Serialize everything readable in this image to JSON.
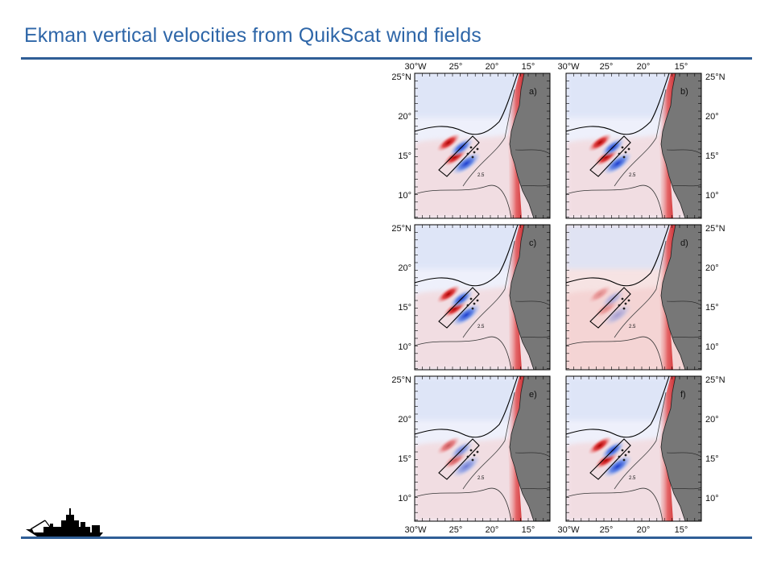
{
  "slide": {
    "title": "Ekman vertical velocities from QuikScat wind fields",
    "colors": {
      "title": "#2e66a8",
      "rule": "#2f5e96",
      "land": "#777777",
      "upwelling": "#d7191c",
      "downwelling": "#2b5fd9"
    }
  },
  "figure": {
    "top_lon_labels": [
      "30°W",
      "25°",
      "20°",
      "15°"
    ],
    "bottom_lon_labels": [
      "30°W",
      "25°",
      "20°",
      "15°"
    ],
    "lat_labels": [
      "25°N",
      "20°",
      "15°",
      "10°"
    ],
    "contour_label": "2.5",
    "panels": [
      {
        "label": "a)",
        "variant": "a"
      },
      {
        "label": "b)",
        "variant": "b"
      },
      {
        "label": "c)",
        "variant": "c"
      },
      {
        "label": "d)",
        "variant": "d"
      },
      {
        "label": "e)",
        "variant": "e"
      },
      {
        "label": "f)",
        "variant": "f"
      }
    ]
  }
}
